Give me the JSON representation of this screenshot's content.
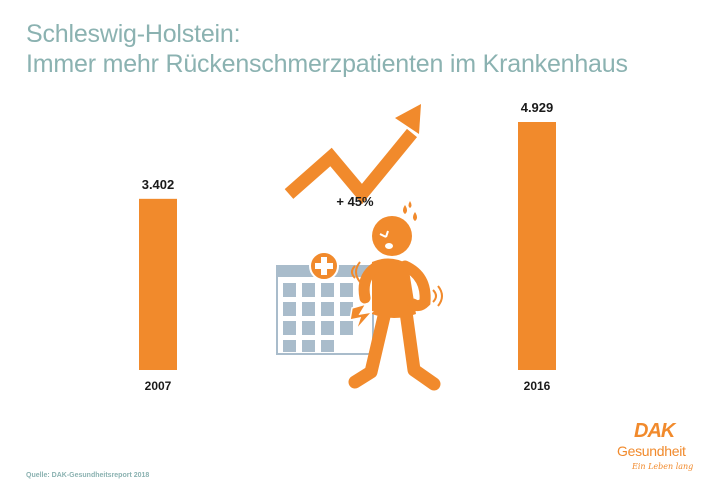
{
  "header": {
    "title_line1": "Schleswig-Holstein:",
    "title_line2": "Immer mehr Rückenschmerzpatienten im Krankenhaus"
  },
  "chart_data": {
    "type": "bar",
    "categories": [
      "2007",
      "2016"
    ],
    "values": [
      3402,
      4929
    ],
    "value_labels": [
      "3.402",
      "4.929"
    ],
    "change_label": "+ 45%",
    "ylim": [
      0,
      4929
    ],
    "grid": false,
    "bar_color": "#f18a2c"
  },
  "illustration": {
    "icons": [
      "trend-up-arrow-icon",
      "hospital-icon",
      "medical-cross-icon",
      "back-pain-person-icon"
    ],
    "accent": "#f18a2c",
    "building_color": "#a9bccb"
  },
  "footer": {
    "source": "Quelle: DAK-Gesundheitsreport 2018"
  },
  "logo": {
    "brand": "DAK",
    "name": "Gesundheit",
    "tagline": "Ein Leben lang"
  },
  "colors": {
    "title": "#8bb2b1",
    "accent": "#f18a2c"
  }
}
